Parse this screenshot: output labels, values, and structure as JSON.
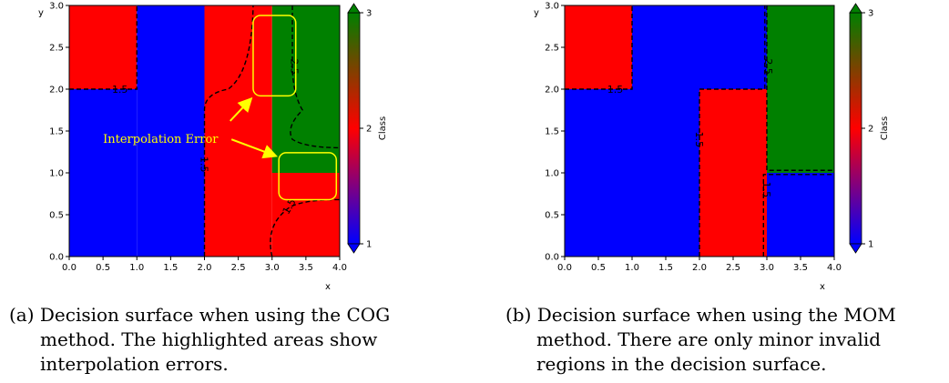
{
  "colors": {
    "class1": "#0000ff",
    "class2": "#ff0000",
    "class3": "#008000",
    "contour": "#000000",
    "annotation": "#ffff00"
  },
  "chart_data": [
    {
      "type": "heatmap",
      "id": "cog",
      "xlabel": "x",
      "ylabel": "y",
      "xlim": [
        0,
        4
      ],
      "ylim": [
        0,
        3
      ],
      "xticks": [
        "0.0",
        "0.5",
        "1.0",
        "1.5",
        "2.0",
        "2.5",
        "3.0",
        "3.5",
        "4.0"
      ],
      "yticks": [
        "0.0",
        "0.5",
        "1.0",
        "1.5",
        "2.0",
        "2.5",
        "3.0"
      ],
      "colorbar": {
        "label": "Class",
        "ticks": [
          "1",
          "2",
          "3"
        ],
        "min": 1,
        "max": 3
      },
      "regions": [
        {
          "x": [
            0,
            1
          ],
          "y": [
            2,
            3
          ],
          "class": 2
        },
        {
          "x": [
            1,
            2
          ],
          "y": [
            0,
            3
          ],
          "class": 1
        },
        {
          "x": [
            0,
            1
          ],
          "y": [
            0,
            2
          ],
          "class": 1
        },
        {
          "x": [
            2,
            3
          ],
          "y": [
            0,
            3
          ],
          "class": 2
        },
        {
          "x": [
            3,
            4
          ],
          "y": [
            1,
            3
          ],
          "class": 3
        },
        {
          "x": [
            3,
            4
          ],
          "y": [
            0,
            1
          ],
          "class": 2
        }
      ],
      "contour_labels": [
        {
          "text": "1.5",
          "x": 0.75,
          "y": 2.0,
          "rotation": 0
        },
        {
          "text": "2.5",
          "x": 3.33,
          "y": 2.27,
          "rotation": 90
        },
        {
          "text": "1.5",
          "x": 2.0,
          "y": 1.1,
          "rotation": 90
        },
        {
          "text": "1.5",
          "x": 3.25,
          "y": 0.6,
          "rotation": -60
        }
      ],
      "annotation": {
        "text": "Interpolation Error",
        "highlight_boxes": [
          {
            "x": [
              2.72,
              3.35
            ],
            "y": [
              1.92,
              2.88
            ]
          },
          {
            "x": [
              3.1,
              3.95
            ],
            "y": [
              0.68,
              1.24
            ]
          }
        ]
      }
    },
    {
      "type": "heatmap",
      "id": "mom",
      "xlabel": "x",
      "ylabel": "y",
      "xlim": [
        0,
        4
      ],
      "ylim": [
        0,
        3
      ],
      "xticks": [
        "0.0",
        "0.5",
        "1.0",
        "1.5",
        "2.0",
        "2.5",
        "3.0",
        "3.5",
        "4.0"
      ],
      "yticks": [
        "0.0",
        "0.5",
        "1.0",
        "1.5",
        "2.0",
        "2.5",
        "3.0"
      ],
      "colorbar": {
        "label": "Class",
        "ticks": [
          "1",
          "2",
          "3"
        ],
        "min": 1,
        "max": 3
      },
      "regions": [
        {
          "x": [
            0,
            1
          ],
          "y": [
            2,
            3
          ],
          "class": 2
        },
        {
          "x": [
            1,
            3
          ],
          "y": [
            2,
            3
          ],
          "class": 1
        },
        {
          "x": [
            0,
            2
          ],
          "y": [
            0,
            2
          ],
          "class": 1
        },
        {
          "x": [
            2,
            3
          ],
          "y": [
            0,
            2
          ],
          "class": 2
        },
        {
          "x": [
            3,
            4
          ],
          "y": [
            1,
            3
          ],
          "class": 3
        },
        {
          "x": [
            3,
            4
          ],
          "y": [
            0,
            1
          ],
          "class": 1
        }
      ],
      "contour_labels": [
        {
          "text": "1.5",
          "x": 0.75,
          "y": 2.0,
          "rotation": 0
        },
        {
          "text": "2.5",
          "x": 3.03,
          "y": 2.27,
          "rotation": 90
        },
        {
          "text": "1.5",
          "x": 2.0,
          "y": 1.4,
          "rotation": 90
        },
        {
          "text": "1.5",
          "x": 3.0,
          "y": 0.8,
          "rotation": 90
        }
      ]
    }
  ],
  "captions": {
    "a": {
      "first": "(a) Decision surface when using the COG",
      "rest": "method. The highlighted areas show interpolation errors."
    },
    "b": {
      "first": "(b) Decision surface when using the MOM",
      "rest": "method. There are only minor invalid regions in the decision surface."
    }
  }
}
